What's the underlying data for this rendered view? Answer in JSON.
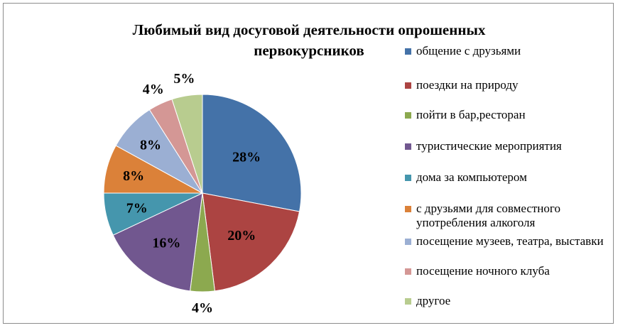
{
  "chart_data": {
    "type": "pie",
    "title": "Любимый вид досуговой деятельности опрошенных\nпервокурсников",
    "legend_position": "right",
    "categories": [
      "общение с друзьями",
      "поездки на природу",
      "пойти в бар,ресторан",
      "туристические мероприятия",
      "дома за компьютером",
      "с друзьями для совместного употребления алкоголя",
      "посещение музеев, театра, выставки",
      "посещение ночного клуба",
      "другое"
    ],
    "values": [
      28,
      20,
      4,
      16,
      7,
      8,
      8,
      4,
      5
    ],
    "labels": [
      "28%",
      "20%",
      "4%",
      "16%",
      "7%",
      "8%",
      "8%",
      "4%",
      "5%"
    ],
    "colors": [
      "#4472a8",
      "#ac4442",
      "#8ca94f",
      "#71578f",
      "#4596ad",
      "#db8139",
      "#9bafd3",
      "#d49795",
      "#b8cc8f"
    ]
  }
}
